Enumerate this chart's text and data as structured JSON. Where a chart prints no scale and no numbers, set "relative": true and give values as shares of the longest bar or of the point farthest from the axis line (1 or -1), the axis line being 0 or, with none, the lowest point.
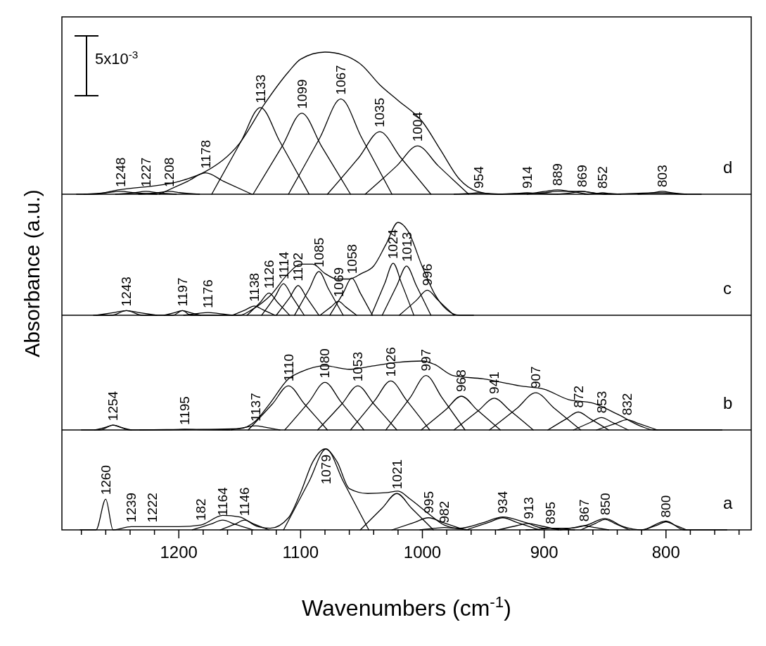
{
  "chart_data": [
    {
      "type": "line",
      "relative": true,
      "xlim": [
        1296,
        730
      ],
      "tick_labels": false,
      "ylabel": "Absorbance (a.u.)",
      "annotations": [
        "d",
        "5x10$^{-3}$",
        {
          "text": "1248",
          "x": 1248,
          "y": 0.02
        },
        {
          "text": "1227",
          "x": 1227,
          "y": 0.02
        },
        {
          "text": "1208",
          "x": 1208,
          "y": 0.02
        },
        {
          "text": "1178",
          "x": 1178,
          "y": 0.15
        },
        {
          "text": "1133",
          "x": 1133,
          "y": 0.61
        },
        {
          "text": "1099",
          "x": 1099,
          "y": 0.57
        },
        {
          "text": "1067",
          "x": 1067,
          "y": 0.67
        },
        {
          "text": "1035",
          "x": 1035,
          "y": 0.44
        },
        {
          "text": "1004",
          "x": 1004,
          "y": 0.34
        },
        {
          "text": "954",
          "x": 954,
          "y": 0.01
        },
        {
          "text": "914",
          "x": 914,
          "y": 0.01
        },
        {
          "text": "889",
          "x": 889,
          "y": 0.03
        },
        {
          "text": "869",
          "x": 869,
          "y": 0.02
        },
        {
          "text": "852",
          "x": 852,
          "y": 0.01
        },
        {
          "text": "803",
          "x": 803,
          "y": 0.02
        }
      ],
      "series": [
        {
          "color": "#000000",
          "x": [
            1284,
            1270,
            1250,
            1200,
            1178,
            1150,
            1130,
            1110,
            1100,
            1080,
            1065,
            1050,
            1035,
            1020,
            1000,
            985,
            970,
            955,
            940,
            900,
            889,
            870,
            850,
            803,
            785,
            771
          ],
          "values": [
            0,
            0,
            0.03,
            0.09,
            0.16,
            0.36,
            0.63,
            0.86,
            0.95,
            1,
            0.98,
            0.91,
            0.77,
            0.66,
            0.51,
            0.31,
            0.11,
            0.02,
            0,
            0.01,
            0.02,
            0.02,
            0,
            0.01,
            0,
            0
          ]
        },
        {
          "color": "#000000",
          "x": [
            1278,
            1260,
            1248,
            1236,
            1218
          ],
          "values": [
            0,
            0.01,
            0.02,
            0.01,
            0
          ]
        },
        {
          "color": "#000000",
          "x": [
            1252,
            1237,
            1227,
            1217,
            1202
          ],
          "values": [
            0,
            0.01,
            0.02,
            0.01,
            0
          ]
        },
        {
          "color": "#000000",
          "x": [
            1233,
            1218,
            1208,
            1198,
            1183
          ],
          "values": [
            0,
            0.01,
            0.02,
            0.01,
            0
          ]
        },
        {
          "color": "#000000",
          "x": [
            1216,
            1193,
            1178,
            1163,
            1140
          ],
          "values": [
            0,
            0.09,
            0.15,
            0.09,
            0
          ]
        },
        {
          "color": "#000000",
          "x": [
            1173,
            1149,
            1133,
            1117,
            1093
          ],
          "values": [
            0,
            0.37,
            0.61,
            0.37,
            0
          ]
        },
        {
          "color": "#000000",
          "x": [
            1139,
            1115,
            1099,
            1083,
            1059
          ],
          "values": [
            0,
            0.34,
            0.57,
            0.34,
            0
          ]
        },
        {
          "color": "#000000",
          "x": [
            1110,
            1084,
            1067,
            1050,
            1025
          ],
          "values": [
            0,
            0.4,
            0.67,
            0.4,
            0
          ]
        },
        {
          "color": "#000000",
          "x": [
            1078,
            1052,
            1035,
            1018,
            993
          ],
          "values": [
            0,
            0.26,
            0.44,
            0.26,
            0
          ]
        },
        {
          "color": "#000000",
          "x": [
            1047,
            1021,
            1004,
            987,
            962
          ],
          "values": [
            0,
            0.2,
            0.34,
            0.2,
            0
          ]
        },
        {
          "color": "#000000",
          "x": [
            974,
            962,
            954,
            946,
            934
          ],
          "values": [
            0,
            0.005,
            0.01,
            0.005,
            0
          ]
        },
        {
          "color": "#000000",
          "x": [
            939,
            924,
            914,
            904,
            889
          ],
          "values": [
            0,
            0.005,
            0.01,
            0.005,
            0
          ]
        },
        {
          "color": "#000000",
          "x": [
            914,
            899,
            889,
            879,
            864
          ],
          "values": [
            0,
            0.02,
            0.03,
            0.02,
            0
          ]
        },
        {
          "color": "#000000",
          "x": [
            889,
            877,
            869,
            861,
            849
          ],
          "values": [
            0,
            0.01,
            0.02,
            0.01,
            0
          ]
        },
        {
          "color": "#000000",
          "x": [
            867,
            858,
            852,
            846,
            837
          ],
          "values": [
            0,
            0.005,
            0.01,
            0.005,
            0
          ]
        },
        {
          "color": "#000000",
          "x": [
            823,
            811,
            803,
            795,
            783
          ],
          "values": [
            0,
            0.01,
            0.02,
            0.01,
            0
          ]
        }
      ]
    },
    {
      "type": "line",
      "relative": true,
      "xlim": [
        1296,
        730
      ],
      "tick_labels": false,
      "annotations": [
        "c",
        {
          "text": "1243",
          "x": 1243,
          "y": 0.05
        },
        {
          "text": "1197",
          "x": 1197,
          "y": 0.05
        },
        {
          "text": "1176",
          "x": 1176,
          "y": 0.03
        },
        {
          "text": "1138",
          "x": 1138,
          "y": 0.1
        },
        {
          "text": "1126",
          "x": 1126,
          "y": 0.24
        },
        {
          "text": "1114",
          "x": 1114,
          "y": 0.34
        },
        {
          "text": "1102",
          "x": 1102,
          "y": 0.32
        },
        {
          "text": "1085",
          "x": 1085,
          "y": 0.47
        },
        {
          "text": "1069",
          "x": 1069,
          "y": 0.15
        },
        {
          "text": "1058",
          "x": 1058,
          "y": 0.4
        },
        {
          "text": "1024",
          "x": 1024,
          "y": 0.56
        },
        {
          "text": "1013",
          "x": 1013,
          "y": 0.53
        },
        {
          "text": "996",
          "x": 996,
          "y": 0.27
        }
      ],
      "series": [
        {
          "color": "#000000",
          "x": [
            1270,
            1255,
            1243,
            1230,
            1205,
            1197,
            1190,
            1150,
            1140,
            1125,
            1110,
            1100,
            1090,
            1080,
            1070,
            1060,
            1050,
            1040,
            1030,
            1020,
            1012,
            1000,
            990,
            980,
            970,
            958
          ],
          "values": [
            0,
            0,
            0.05,
            0,
            0,
            0.05,
            0,
            0,
            0.06,
            0.21,
            0.45,
            0.55,
            0.55,
            0.45,
            0.39,
            0.39,
            0.45,
            0.53,
            0.76,
            1,
            0.91,
            0.52,
            0.23,
            0.06,
            0,
            0
          ]
        },
        {
          "color": "#000000",
          "x": [
            1268,
            1253,
            1243,
            1233,
            1218
          ],
          "values": [
            0,
            0.03,
            0.05,
            0.03,
            0
          ]
        },
        {
          "color": "#000000",
          "x": [
            1212,
            1203,
            1197,
            1191,
            1182
          ],
          "values": [
            0,
            0.03,
            0.05,
            0.03,
            0
          ]
        },
        {
          "color": "#000000",
          "x": [
            1196,
            1184,
            1176,
            1168,
            1156
          ],
          "values": [
            0,
            0.02,
            0.03,
            0.02,
            0
          ]
        },
        {
          "color": "#000000",
          "x": [
            1156,
            1145,
            1138,
            1131,
            1121
          ],
          "values": [
            0,
            0.06,
            0.1,
            0.06,
            0
          ]
        },
        {
          "color": "#000000",
          "x": [
            1144,
            1133,
            1126,
            1119,
            1109
          ],
          "values": [
            0,
            0.14,
            0.24,
            0.14,
            0
          ]
        },
        {
          "color": "#000000",
          "x": [
            1132,
            1121,
            1114,
            1107,
            1097
          ],
          "values": [
            0,
            0.2,
            0.34,
            0.2,
            0
          ]
        },
        {
          "color": "#000000",
          "x": [
            1120,
            1109,
            1102,
            1095,
            1085
          ],
          "values": [
            0,
            0.19,
            0.32,
            0.19,
            0
          ]
        },
        {
          "color": "#000000",
          "x": [
            1105,
            1093,
            1085,
            1077,
            1065
          ],
          "values": [
            0,
            0.28,
            0.47,
            0.28,
            0
          ]
        },
        {
          "color": "#000000",
          "x": [
            1084,
            1075,
            1069,
            1063,
            1054
          ],
          "values": [
            0,
            0.09,
            0.15,
            0.09,
            0
          ]
        },
        {
          "color": "#000000",
          "x": [
            1076,
            1065,
            1058,
            1051,
            1041
          ],
          "values": [
            0,
            0.24,
            0.4,
            0.24,
            0
          ]
        },
        {
          "color": "#000000",
          "x": [
            1042,
            1031,
            1024,
            1017,
            1007
          ],
          "values": [
            0,
            0.34,
            0.56,
            0.34,
            0
          ]
        },
        {
          "color": "#000000",
          "x": [
            1033,
            1021,
            1013,
            1005,
            993
          ],
          "values": [
            0,
            0.32,
            0.53,
            0.32,
            0
          ]
        },
        {
          "color": "#000000",
          "x": [
            1019,
            1005,
            996,
            987,
            974
          ],
          "values": [
            0,
            0.16,
            0.27,
            0.16,
            0
          ]
        }
      ]
    },
    {
      "type": "line",
      "relative": true,
      "xlim": [
        1296,
        730
      ],
      "tick_labels": false,
      "annotations": [
        "b",
        {
          "text": "1254",
          "x": 1254,
          "y": 0.07
        },
        {
          "text": "1195",
          "x": 1195,
          "y": 0.01
        },
        {
          "text": "1137",
          "x": 1137,
          "y": 0.06
        },
        {
          "text": "1110",
          "x": 1110,
          "y": 0.64
        },
        {
          "text": "1080",
          "x": 1080,
          "y": 0.69
        },
        {
          "text": "1053",
          "x": 1053,
          "y": 0.64
        },
        {
          "text": "1026",
          "x": 1026,
          "y": 0.71
        },
        {
          "text": "997",
          "x": 997,
          "y": 0.79
        },
        {
          "text": "968",
          "x": 968,
          "y": 0.49
        },
        {
          "text": "941",
          "x": 941,
          "y": 0.46
        },
        {
          "text": "907",
          "x": 907,
          "y": 0.54
        },
        {
          "text": "872",
          "x": 872,
          "y": 0.26
        },
        {
          "text": "853",
          "x": 853,
          "y": 0.18
        },
        {
          "text": "832",
          "x": 832,
          "y": 0.15
        }
      ],
      "series": [
        {
          "color": "#000000",
          "x": [
            1280,
            1265,
            1254,
            1240,
            1150,
            1137,
            1125,
            1110,
            1100,
            1080,
            1060,
            1040,
            1020,
            1000,
            990,
            975,
            950,
            920,
            900,
            880,
            860,
            840,
            820,
            810,
            754
          ],
          "values": [
            0,
            0,
            0.07,
            0,
            0.02,
            0.13,
            0.39,
            0.74,
            0.84,
            0.93,
            0.88,
            0.93,
            0.98,
            1,
            0.95,
            0.79,
            0.74,
            0.64,
            0.59,
            0.44,
            0.39,
            0.23,
            0.05,
            0,
            0
          ]
        },
        {
          "color": "#000000",
          "x": [
            1269,
            1260,
            1254,
            1248,
            1239
          ],
          "values": [
            0,
            0.04,
            0.07,
            0.04,
            0
          ]
        },
        {
          "color": "#000000",
          "x": [
            1232,
            1210,
            1195,
            1180,
            1158
          ],
          "values": [
            0,
            0.005,
            0.01,
            0.005,
            0
          ]
        },
        {
          "color": "#000000",
          "x": [
            1157,
            1145,
            1137,
            1129,
            1117
          ],
          "values": [
            0,
            0.04,
            0.06,
            0.04,
            0
          ]
        },
        {
          "color": "#000000",
          "x": [
            1143,
            1123,
            1110,
            1097,
            1078
          ],
          "values": [
            0,
            0.38,
            0.64,
            0.38,
            0
          ]
        },
        {
          "color": "#000000",
          "x": [
            1113,
            1093,
            1080,
            1067,
            1048
          ],
          "values": [
            0,
            0.41,
            0.69,
            0.41,
            0
          ]
        },
        {
          "color": "#000000",
          "x": [
            1086,
            1066,
            1053,
            1040,
            1021
          ],
          "values": [
            0,
            0.38,
            0.64,
            0.38,
            0
          ]
        },
        {
          "color": "#000000",
          "x": [
            1059,
            1039,
            1026,
            1013,
            994
          ],
          "values": [
            0,
            0.43,
            0.71,
            0.43,
            0
          ]
        },
        {
          "color": "#000000",
          "x": [
            1030,
            1010,
            997,
            984,
            965
          ],
          "values": [
            0,
            0.47,
            0.79,
            0.47,
            0
          ]
        },
        {
          "color": "#000000",
          "x": [
            1001,
            981,
            968,
            955,
            936
          ],
          "values": [
            0,
            0.29,
            0.49,
            0.29,
            0
          ]
        },
        {
          "color": "#000000",
          "x": [
            974,
            954,
            941,
            928,
            909
          ],
          "values": [
            0,
            0.28,
            0.46,
            0.28,
            0
          ]
        },
        {
          "color": "#000000",
          "x": [
            945,
            922,
            907,
            892,
            870
          ],
          "values": [
            0,
            0.32,
            0.54,
            0.32,
            0
          ]
        },
        {
          "color": "#000000",
          "x": [
            897,
            882,
            872,
            862,
            847
          ],
          "values": [
            0,
            0.16,
            0.26,
            0.16,
            0
          ]
        },
        {
          "color": "#000000",
          "x": [
            876,
            862,
            853,
            844,
            831
          ],
          "values": [
            0,
            0.11,
            0.18,
            0.11,
            0
          ]
        },
        {
          "color": "#000000",
          "x": [
            857,
            842,
            832,
            822,
            807
          ],
          "values": [
            0,
            0.09,
            0.15,
            0.09,
            0
          ]
        }
      ]
    },
    {
      "type": "line",
      "relative": true,
      "xlim": [
        1296,
        730
      ],
      "tick_labels": "x",
      "xlabel": "Wavenumbers (cm$^{-1}$)",
      "xticks": [
        {
          "value": 1280,
          "label": null
        },
        {
          "value": 1260,
          "label": null
        },
        {
          "value": 1240,
          "label": null
        },
        {
          "value": 1220,
          "label": null
        },
        1200,
        {
          "value": 1180,
          "label": null
        },
        {
          "value": 1160,
          "label": null
        },
        {
          "value": 1140,
          "label": null
        },
        {
          "value": 1120,
          "label": null
        },
        1100,
        {
          "value": 1080,
          "label": null
        },
        {
          "value": 1060,
          "label": null
        },
        {
          "value": 1040,
          "label": null
        },
        {
          "value": 1020,
          "label": null
        },
        1000,
        {
          "value": 980,
          "label": null
        },
        {
          "value": 960,
          "label": null
        },
        {
          "value": 940,
          "label": null
        },
        {
          "value": 920,
          "label": null
        },
        900,
        {
          "value": 880,
          "label": null
        },
        {
          "value": 860,
          "label": null
        },
        {
          "value": 840,
          "label": null
        },
        {
          "value": 820,
          "label": null
        },
        800,
        {
          "value": 780,
          "label": null
        },
        {
          "value": 760,
          "label": null
        },
        {
          "value": 740,
          "label": null
        }
      ],
      "annotations": [
        "a",
        {
          "text": "1260",
          "x": 1260,
          "y": 0.38
        },
        {
          "text": "1239",
          "x": 1239,
          "y": 0.04
        },
        {
          "text": "1222",
          "x": 1222,
          "y": 0.04
        },
        {
          "text": "182",
          "x": 1182,
          "y": 0.06
        },
        {
          "text": "1164",
          "x": 1164,
          "y": 0.12
        },
        {
          "text": "1146",
          "x": 1146,
          "y": 0.12
        },
        {
          "text": "1079",
          "x": 1079,
          "y": 1
        },
        {
          "text": "1021",
          "x": 1021,
          "y": 0.45
        },
        {
          "text": "995",
          "x": 995,
          "y": 0.15
        },
        {
          "text": "982",
          "x": 982,
          "y": 0.03
        },
        {
          "text": "934",
          "x": 934,
          "y": 0.15
        },
        {
          "text": "913",
          "x": 913,
          "y": 0.08
        },
        {
          "text": "895",
          "x": 895,
          "y": 0.02
        },
        {
          "text": "867",
          "x": 867,
          "y": 0.05
        },
        {
          "text": "850",
          "x": 850,
          "y": 0.13
        },
        {
          "text": "800",
          "x": 800,
          "y": 0.1
        }
      ],
      "series": [
        {
          "color": "#000000",
          "x": [
            1281,
            1268,
            1260,
            1254,
            1239,
            1222,
            1200,
            1182,
            1164,
            1150,
            1135,
            1125,
            1110,
            1100,
            1090,
            1080,
            1070,
            1060,
            1045,
            1030,
            1020,
            1010,
            995,
            982,
            970,
            950,
            934,
            915,
            900,
            880,
            865,
            850,
            835,
            820,
            800,
            785,
            750
          ],
          "values": [
            0,
            0,
            0.38,
            0,
            0.04,
            0.04,
            0.04,
            0.06,
            0.18,
            0.16,
            0.04,
            0.02,
            0.15,
            0.46,
            0.84,
            1,
            0.84,
            0.51,
            0.45,
            0.46,
            0.48,
            0.38,
            0.2,
            0.06,
            0.02,
            0.09,
            0.16,
            0.09,
            0.02,
            0.02,
            0.06,
            0.14,
            0.04,
            0,
            0.11,
            0,
            0
          ]
        },
        {
          "color": "#000000",
          "x": [
            1189,
            1174,
            1164,
            1154,
            1139
          ],
          "values": [
            0,
            0.07,
            0.12,
            0.07,
            0
          ]
        },
        {
          "color": "#000000",
          "x": [
            1166,
            1154,
            1146,
            1138,
            1126
          ],
          "values": [
            0,
            0.07,
            0.12,
            0.07,
            0
          ]
        },
        {
          "color": "#000000",
          "x": [
            1114,
            1093,
            1079,
            1065,
            1044
          ],
          "values": [
            0,
            0.6,
            1,
            0.6,
            0
          ]
        },
        {
          "color": "#000000",
          "x": [
            1051,
            1033,
            1021,
            1009,
            991
          ],
          "values": [
            0,
            0.27,
            0.45,
            0.27,
            0
          ]
        },
        {
          "color": "#000000",
          "x": [
            1025,
            1007,
            995,
            983,
            965
          ],
          "values": [
            0,
            0.09,
            0.15,
            0.09,
            0
          ]
        },
        {
          "color": "#000000",
          "x": [
            1002,
            990,
            982,
            974,
            962
          ],
          "values": [
            0,
            0.02,
            0.03,
            0.02,
            0
          ]
        },
        {
          "color": "#000000",
          "x": [
            964,
            946,
            934,
            922,
            904
          ],
          "values": [
            0,
            0.09,
            0.15,
            0.09,
            0
          ]
        },
        {
          "color": "#000000",
          "x": [
            938,
            923,
            913,
            903,
            888
          ],
          "values": [
            0,
            0.05,
            0.08,
            0.05,
            0
          ]
        },
        {
          "color": "#000000",
          "x": [
            915,
            903,
            895,
            887,
            875
          ],
          "values": [
            0,
            0.01,
            0.02,
            0.01,
            0
          ]
        },
        {
          "color": "#000000",
          "x": [
            887,
            875,
            867,
            859,
            847
          ],
          "values": [
            0,
            0.03,
            0.05,
            0.03,
            0
          ]
        },
        {
          "color": "#000000",
          "x": [
            870,
            858,
            850,
            842,
            830
          ],
          "values": [
            0,
            0.08,
            0.13,
            0.08,
            0
          ]
        },
        {
          "color": "#000000",
          "x": [
            818,
            807,
            800,
            793,
            783
          ],
          "values": [
            0,
            0.06,
            0.1,
            0.06,
            0
          ]
        }
      ]
    }
  ]
}
